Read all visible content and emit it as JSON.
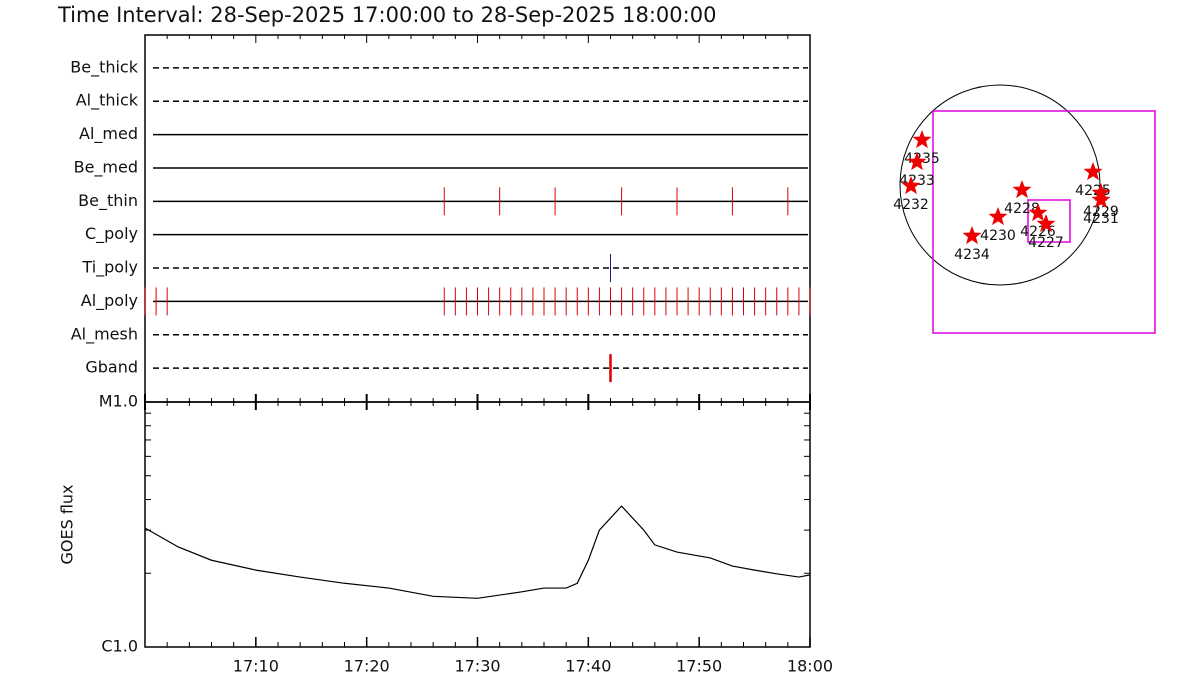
{
  "title": "Time Interval: 28-Sep-2025 17:00:00 to 28-Sep-2025 18:00:00",
  "chart_data": [
    {
      "type": "timeline",
      "xlim": [
        "17:00",
        "18:00"
      ],
      "rows": [
        {
          "name": "Be_thick",
          "style": "dashed",
          "color": "#e00000",
          "events": []
        },
        {
          "name": "Al_thick",
          "style": "dashed",
          "color": "#e00000",
          "events": []
        },
        {
          "name": "Al_med",
          "style": "solid",
          "color": "#e00000",
          "events": []
        },
        {
          "name": "Be_med",
          "style": "solid",
          "color": "#e00000",
          "events": []
        },
        {
          "name": "Be_thin",
          "style": "solid",
          "color": "#e00000",
          "events": [
            "17:27",
            "17:32",
            "17:37",
            "17:43",
            "17:48",
            "17:53",
            "17:58"
          ]
        },
        {
          "name": "C_poly",
          "style": "solid",
          "color": "#e00000",
          "events": []
        },
        {
          "name": "Ti_poly",
          "style": "dashed",
          "color": "#1a1a80",
          "events": [
            "17:42"
          ]
        },
        {
          "name": "Al_poly",
          "style": "solid",
          "color": "#e00000",
          "events": [
            "17:00",
            "17:01",
            "17:02",
            "17:27",
            "17:28",
            "17:29",
            "17:30",
            "17:31",
            "17:32",
            "17:33",
            "17:34",
            "17:35",
            "17:36",
            "17:37",
            "17:38",
            "17:39",
            "17:40",
            "17:41",
            "17:42",
            "17:43",
            "17:44",
            "17:45",
            "17:46",
            "17:47",
            "17:48",
            "17:49",
            "17:50",
            "17:51",
            "17:52",
            "17:53",
            "17:54",
            "17:55",
            "17:56",
            "17:57",
            "17:58",
            "17:59",
            "18:00"
          ]
        },
        {
          "name": "Al_mesh",
          "style": "dashed",
          "color": "#e00000",
          "events": []
        },
        {
          "name": "Gband",
          "style": "dashed",
          "color": "#e00000",
          "events": [
            "17:42"
          ]
        }
      ]
    },
    {
      "type": "line",
      "ylabel": "GOES flux",
      "log_scale": true,
      "color": "#000000",
      "xlim": [
        "17:00",
        "18:00"
      ],
      "xticks": [
        "17:10",
        "17:20",
        "17:30",
        "17:40",
        "17:50",
        "18:00"
      ],
      "ylim": [
        1e-06,
        1e-05
      ],
      "yticks": [
        {
          "value": 1e-06,
          "label": "C1.0"
        },
        {
          "value": 1e-05,
          "label": "M1.0"
        }
      ],
      "x": [
        "17:00",
        "17:03",
        "17:06",
        "17:10",
        "17:14",
        "17:18",
        "17:22",
        "17:26",
        "17:30",
        "17:34",
        "17:36",
        "17:38",
        "17:39",
        "17:40",
        "17:41",
        "17:43",
        "17:45",
        "17:46",
        "17:48",
        "17:51",
        "17:53",
        "17:55",
        "17:57",
        "17:59",
        "18:00"
      ],
      "values": [
        3.06e-06,
        2.56e-06,
        2.26e-06,
        2.06e-06,
        1.93e-06,
        1.82e-06,
        1.74e-06,
        1.61e-06,
        1.58e-06,
        1.68e-06,
        1.74e-06,
        1.74e-06,
        1.82e-06,
        2.26e-06,
        3e-06,
        3.76e-06,
        3e-06,
        2.61e-06,
        2.44e-06,
        2.31e-06,
        2.14e-06,
        2.06e-06,
        1.99e-06,
        1.93e-06,
        1.97e-06
      ]
    },
    {
      "type": "map",
      "disk_color": "#000000",
      "box_color": "#e000e0",
      "star_color": "#ee0000",
      "boxes": [
        [
          -0.67,
          0.74,
          1.55,
          -1.48
        ],
        [
          0.28,
          -0.15,
          0.7,
          -0.57
        ]
      ],
      "regions": [
        {
          "label": "4235",
          "x": -0.78,
          "y": 0.45
        },
        {
          "label": "4233",
          "x": -0.83,
          "y": 0.23
        },
        {
          "label": "4232",
          "x": -0.89,
          "y": -0.01
        },
        {
          "label": "4228",
          "x": 0.22,
          "y": -0.05
        },
        {
          "label": "4230",
          "x": -0.02,
          "y": -0.32
        },
        {
          "label": "4234",
          "x": -0.28,
          "y": -0.51
        },
        {
          "label": "4226",
          "x": 0.38,
          "y": -0.28
        },
        {
          "label": "4227",
          "x": 0.46,
          "y": -0.39
        },
        {
          "label": "4225",
          "x": 0.93,
          "y": 0.13
        },
        {
          "label": "4229",
          "x": 1.01,
          "y": -0.08
        },
        {
          "label": "4231",
          "x": 1.01,
          "y": -0.15
        }
      ]
    }
  ]
}
